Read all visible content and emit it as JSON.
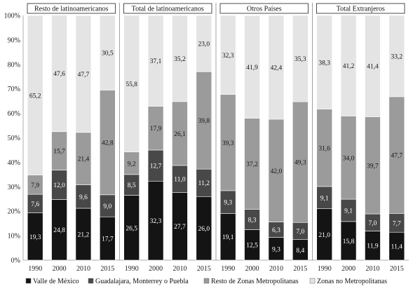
{
  "chart_data": {
    "type": "bar",
    "stacked": true,
    "y_axis": {
      "min": 0,
      "max": 100,
      "ticks": [
        0,
        10,
        20,
        30,
        40,
        50,
        60,
        70,
        80,
        90,
        100
      ],
      "tick_labels": [
        "0%",
        "10%",
        "20%",
        "30%",
        "40%",
        "50%",
        "60%",
        "70%",
        "80%",
        "90%",
        "100%"
      ]
    },
    "gridlines": false,
    "legend_position": "bottom",
    "series": [
      {
        "name": "Valle de México",
        "color": "#141414"
      },
      {
        "name": "Guadalajara, Monterrey o Puebla",
        "color": "#484848"
      },
      {
        "name": "Resto de Zonas Metropolitanas",
        "color": "#9b9b9b"
      },
      {
        "name": "Zonas no Metropolitanas",
        "color": "#e4e4e4"
      }
    ],
    "panels": [
      {
        "title": "Resto de latinoamericanos",
        "categories": [
          "1990",
          "2000",
          "2010",
          "2015"
        ],
        "values": [
          [
            19.3,
            7.6,
            7.9,
            65.2
          ],
          [
            24.8,
            12.0,
            15.7,
            47.6
          ],
          [
            21.2,
            9.6,
            21.4,
            47.7
          ],
          [
            17.7,
            9.0,
            42.8,
            30.5
          ]
        ]
      },
      {
        "title": "Total de latinoamericanos",
        "categories": [
          "1990",
          "2000",
          "2010",
          "2015"
        ],
        "values": [
          [
            26.5,
            8.5,
            9.2,
            55.8
          ],
          [
            32.3,
            12.7,
            17.9,
            37.1
          ],
          [
            27.7,
            11.0,
            26.1,
            35.2
          ],
          [
            26.0,
            11.2,
            39.8,
            23.0
          ]
        ]
      },
      {
        "title": "Otros Países",
        "categories": [
          "1990",
          "2000",
          "2010",
          "2015"
        ],
        "values": [
          [
            19.1,
            9.3,
            39.3,
            32.3
          ],
          [
            12.5,
            8.3,
            37.2,
            41.9
          ],
          [
            9.3,
            6.3,
            42.0,
            42.4
          ],
          [
            8.4,
            7.0,
            49.3,
            35.3
          ]
        ]
      },
      {
        "title": "Total Extranjeros",
        "categories": [
          "1990",
          "2000",
          "2010",
          "2015"
        ],
        "values": [
          [
            21.0,
            9.1,
            31.6,
            38.3
          ],
          [
            15.8,
            9.1,
            34.0,
            41.2
          ],
          [
            11.9,
            7.0,
            39.7,
            41.4
          ],
          [
            11.4,
            7.7,
            47.7,
            33.2
          ]
        ]
      }
    ]
  }
}
